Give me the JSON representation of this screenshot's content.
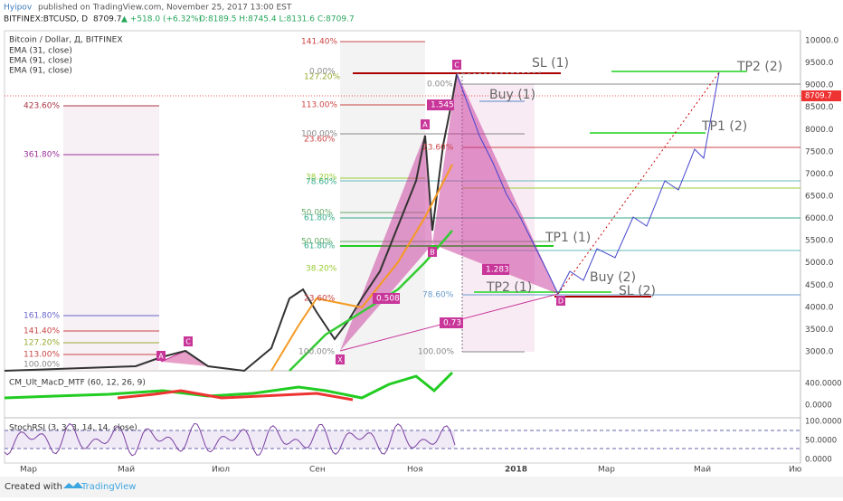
{
  "header": {
    "author": "Hyipov",
    "published": "published on TradingView.com, November 25, 2017 13:00 EST",
    "symbol": "BITFINEX:BTCUSD, D",
    "last": "8709.7",
    "change": "▲ +518.0 (+6.32%)",
    "ohlc": "O:8189.5 H:8745.4 L:8131.6 C:8709.7"
  },
  "legend": [
    "Bitcoin / Dollar, Д, BITFINEX",
    "EMA (31, close)",
    "EMA (91, close)",
    "EMA (91, close)"
  ],
  "price_axis": [
    "10000.0",
    "9500.0",
    "9000.0",
    "8500.0",
    "8000.0",
    "7500.0",
    "7000.0",
    "6500.0",
    "6000.0",
    "5500.0",
    "5000.0",
    "4500.0",
    "4000.0",
    "3500.0",
    "3000.0"
  ],
  "price_tag": "8709.7",
  "macd": {
    "name": "CM_Ult_MacD_MTF (60, 12, 26, 9)",
    "axis": [
      "400.0000",
      "0.0000"
    ]
  },
  "stoch": {
    "name": "StochRSI (3, 3, 3, 14, 14, close)",
    "axis": [
      "100.0000",
      "50.0000",
      "0.0000"
    ]
  },
  "time_axis": [
    "Мар",
    "Май",
    "Июл",
    "Сен",
    "Ноя",
    "2018",
    "Мар",
    "Май",
    "Ию"
  ],
  "fib_left": [
    "423.60%",
    "361.80%",
    "161.80%",
    "141.40%",
    "127.20%",
    "113.00%",
    "100.00%"
  ],
  "fib_top": [
    "141.40%",
    "127.20%",
    "0.00%",
    "113.00%",
    "100.00%",
    "23.60%",
    "38.20%",
    "78.60%",
    "50.00%",
    "61.80%",
    "50.00%",
    "61.80%",
    "38.20%",
    "23.60%",
    "100.00%"
  ],
  "fib_right": [
    "0.00%",
    "23.60%",
    "78.60%",
    "100.00%"
  ],
  "ratios": [
    "1.545",
    "1.283",
    "0.508",
    "0.73"
  ],
  "points": [
    "X",
    "A",
    "B",
    "C",
    "D",
    "A",
    "C"
  ],
  "targets": [
    "SL (1)",
    "Buy (1)",
    "TP2 (2)",
    "TP1 (2)",
    "TP1 (1)",
    "Buy (2)",
    "TP2 (1)",
    "SL (2)"
  ],
  "footer": {
    "created": "Created with",
    "brand": "TradingView"
  }
}
